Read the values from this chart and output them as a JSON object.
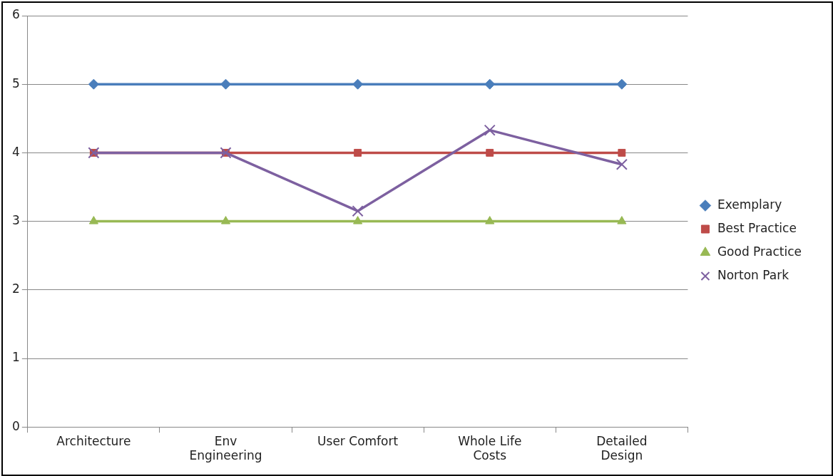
{
  "chart_data": {
    "type": "line",
    "categories": [
      "Architecture",
      "Env\nEngineering",
      "User Comfort",
      "Whole Life\nCosts",
      "Detailed\nDesign"
    ],
    "series": [
      {
        "name": "Exemplary",
        "color": "#4a7ebb",
        "marker": "diamond",
        "values": [
          5,
          5,
          5,
          5,
          5
        ]
      },
      {
        "name": "Best Practice",
        "color": "#be4b48",
        "marker": "square",
        "values": [
          4,
          4,
          4,
          4,
          4
        ]
      },
      {
        "name": "Good Practice",
        "color": "#98b954",
        "marker": "triangle",
        "values": [
          3,
          3,
          3,
          3,
          3
        ]
      },
      {
        "name": "Norton Park",
        "color": "#7d60a0",
        "marker": "cross",
        "values": [
          4,
          4,
          3.15,
          4.33,
          3.83
        ]
      }
    ],
    "ylim": [
      0,
      6
    ],
    "yticks": [
      0,
      1,
      2,
      3,
      4,
      5,
      6
    ],
    "grid": "y",
    "legend": "right",
    "line_style": "solid"
  }
}
